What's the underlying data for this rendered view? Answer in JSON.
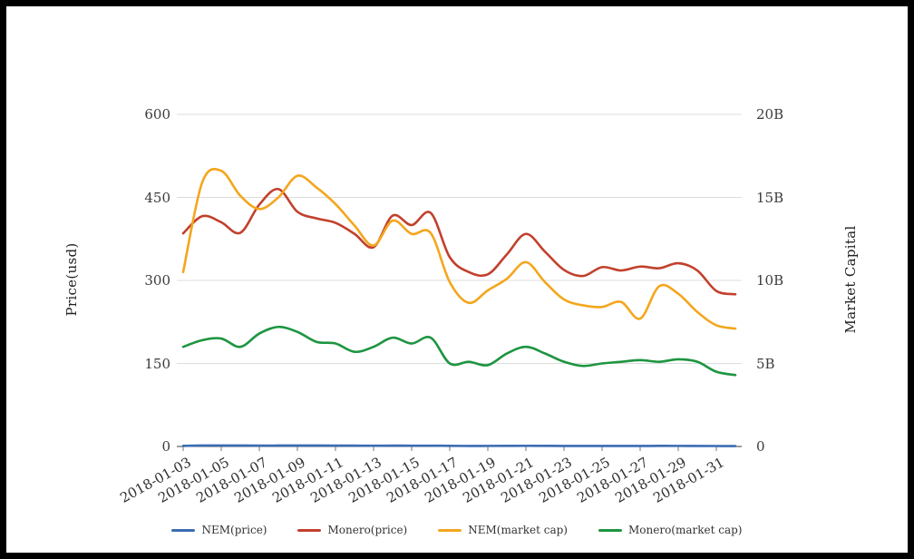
{
  "chart_data": {
    "type": "line",
    "title": "",
    "x": [
      "2018-01-03",
      "2018-01-04",
      "2018-01-05",
      "2018-01-06",
      "2018-01-07",
      "2018-01-08",
      "2018-01-09",
      "2018-01-10",
      "2018-01-11",
      "2018-01-12",
      "2018-01-13",
      "2018-01-14",
      "2018-01-15",
      "2018-01-16",
      "2018-01-17",
      "2018-01-18",
      "2018-01-19",
      "2018-01-20",
      "2018-01-21",
      "2018-01-22",
      "2018-01-23",
      "2018-01-24",
      "2018-01-25",
      "2018-01-26",
      "2018-01-27",
      "2018-01-28",
      "2018-01-29",
      "2018-01-30",
      "2018-01-31",
      "2018-02-01"
    ],
    "x_tick_labels": [
      "2018-01-03",
      "2018-01-05",
      "2018-01-07",
      "2018-01-09",
      "2018-01-11",
      "2018-01-13",
      "2018-01-15",
      "2018-01-17",
      "2018-01-19",
      "2018-01-21",
      "2018-01-23",
      "2018-01-25",
      "2018-01-27",
      "2018-01-29",
      "2018-01-31"
    ],
    "left_axis": {
      "label": "Price(usd)",
      "ticks": [
        "0",
        "150",
        "300",
        "450",
        "600"
      ],
      "range": [
        0,
        600
      ]
    },
    "right_axis": {
      "label": "Market Capital",
      "ticks": [
        "0",
        "5B",
        "10B",
        "15B",
        "20B"
      ],
      "range": [
        0,
        20
      ]
    },
    "grid": true,
    "legend_position": "bottom",
    "legend": [
      "NEM(price)",
      "Monero(price)",
      "NEM(market cap)",
      "Monero(market cap)"
    ],
    "series": [
      {
        "name": "NEM(price)",
        "axis": "left",
        "unit": "USD",
        "color": "#3b6cb3",
        "values": [
          1.17,
          1.77,
          1.84,
          1.68,
          1.59,
          1.67,
          1.81,
          1.73,
          1.62,
          1.48,
          1.34,
          1.51,
          1.42,
          1.43,
          1.1,
          0.96,
          1.03,
          1.12,
          1.23,
          1.1,
          0.98,
          0.94,
          0.93,
          0.97,
          0.86,
          1.07,
          1.03,
          0.9,
          0.81,
          0.79
        ]
      },
      {
        "name": "Monero(price)",
        "axis": "left",
        "unit": "USD",
        "color": "#c2402c",
        "values": [
          385,
          416,
          405,
          386,
          437,
          465,
          424,
          412,
          404,
          384,
          360,
          417,
          400,
          422,
          342,
          315,
          311,
          347,
          384,
          352,
          319,
          308,
          324,
          318,
          325,
          322,
          331,
          318,
          281,
          275
        ]
      },
      {
        "name": "NEM(market cap)",
        "axis": "right",
        "unit": "billion USD",
        "color": "#f4a61d",
        "values": [
          10.5,
          15.9,
          16.6,
          15.1,
          14.3,
          15.0,
          16.3,
          15.6,
          14.6,
          13.3,
          12.1,
          13.6,
          12.8,
          12.85,
          9.9,
          8.65,
          9.4,
          10.1,
          11.1,
          9.9,
          8.85,
          8.5,
          8.4,
          8.7,
          7.7,
          9.65,
          9.2,
          8.1,
          7.3,
          7.1
        ]
      },
      {
        "name": "Monero(market cap)",
        "axis": "right",
        "unit": "billion USD",
        "color": "#1d9540",
        "values": [
          6.0,
          6.4,
          6.5,
          6.0,
          6.8,
          7.2,
          6.9,
          6.3,
          6.2,
          5.7,
          6.0,
          6.55,
          6.2,
          6.55,
          5.0,
          5.1,
          4.9,
          5.6,
          6.0,
          5.6,
          5.1,
          4.85,
          5.0,
          5.1,
          5.2,
          5.1,
          5.25,
          5.1,
          4.5,
          4.3
        ]
      }
    ],
    "colors": {
      "grid": "#dcdcdc",
      "axis_line": "#3c3c3c",
      "tick_text": "#3b3b3b"
    }
  }
}
